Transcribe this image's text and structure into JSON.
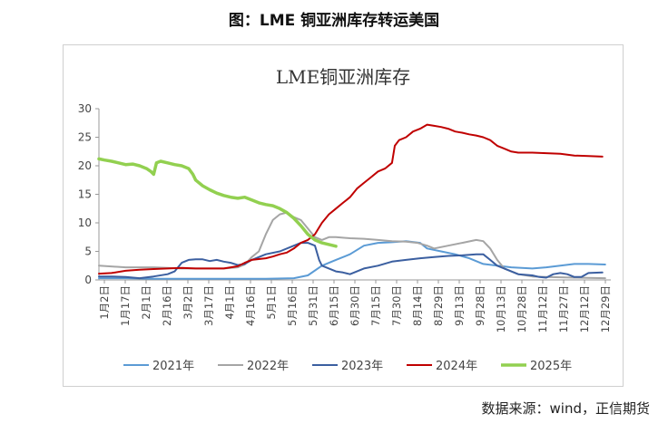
{
  "page_title": "图：LME 铜亚洲库存转运美国",
  "source_note": "数据来源：wind，正信期货",
  "chart_data": {
    "type": "line",
    "title": "LME铜亚洲库存",
    "xlabel": "",
    "ylabel": "",
    "ylim": [
      0,
      30
    ],
    "yticks": [
      0,
      5,
      10,
      15,
      20,
      25,
      30
    ],
    "x_tick_labels": [
      "1月2日",
      "1月17日",
      "2月1日",
      "2月16日",
      "3月2日",
      "3月17日",
      "4月1日",
      "4月16日",
      "5月1日",
      "5月16日",
      "5月31日",
      "6月15日",
      "6月30日",
      "7月15日",
      "7月30日",
      "8月14日",
      "8月29日",
      "9月13日",
      "9月28日",
      "10月13日",
      "10月28日",
      "11月12日",
      "11月27日",
      "12月12日",
      "12月29日"
    ],
    "grid": false,
    "legend_position": "bottom",
    "colors": {
      "2021": "#5b9bd5",
      "2022": "#a5a5a5",
      "2023": "#3b5fa0",
      "2024": "#c00000",
      "2025": "#92d050"
    },
    "series": [
      {
        "name": "2021年",
        "key": "2021",
        "points": [
          [
            1,
            0.3
          ],
          [
            20,
            0.3
          ],
          [
            40,
            0.2
          ],
          [
            60,
            0.2
          ],
          [
            80,
            0.2
          ],
          [
            100,
            0.2
          ],
          [
            120,
            0.2
          ],
          [
            140,
            0.3
          ],
          [
            150,
            0.8
          ],
          [
            160,
            2.5
          ],
          [
            170,
            3.5
          ],
          [
            180,
            4.5
          ],
          [
            190,
            6.0
          ],
          [
            200,
            6.5
          ],
          [
            210,
            6.6
          ],
          [
            220,
            6.8
          ],
          [
            230,
            6.5
          ],
          [
            235,
            5.5
          ],
          [
            245,
            5.0
          ],
          [
            255,
            4.5
          ],
          [
            265,
            3.8
          ],
          [
            275,
            2.8
          ],
          [
            285,
            2.5
          ],
          [
            295,
            2.2
          ],
          [
            310,
            2.0
          ],
          [
            320,
            2.2
          ],
          [
            330,
            2.5
          ],
          [
            340,
            2.8
          ],
          [
            350,
            2.8
          ],
          [
            362,
            2.7
          ]
        ]
      },
      {
        "name": "2022年",
        "key": "2022",
        "points": [
          [
            1,
            2.5
          ],
          [
            20,
            2.2
          ],
          [
            40,
            2.2
          ],
          [
            60,
            2.0
          ],
          [
            75,
            2.0
          ],
          [
            90,
            2.0
          ],
          [
            100,
            2.2
          ],
          [
            105,
            2.7
          ],
          [
            110,
            4.0
          ],
          [
            115,
            5.0
          ],
          [
            120,
            8.0
          ],
          [
            125,
            10.5
          ],
          [
            130,
            11.5
          ],
          [
            135,
            11.8
          ],
          [
            140,
            11.0
          ],
          [
            145,
            10.5
          ],
          [
            150,
            9.0
          ],
          [
            155,
            7.5
          ],
          [
            160,
            7.0
          ],
          [
            165,
            7.5
          ],
          [
            170,
            7.5
          ],
          [
            180,
            7.3
          ],
          [
            190,
            7.2
          ],
          [
            200,
            7.0
          ],
          [
            210,
            6.8
          ],
          [
            220,
            6.7
          ],
          [
            228,
            6.5
          ],
          [
            235,
            6.0
          ],
          [
            240,
            5.5
          ],
          [
            250,
            6.0
          ],
          [
            260,
            6.5
          ],
          [
            270,
            7.0
          ],
          [
            275,
            6.8
          ],
          [
            280,
            5.5
          ],
          [
            285,
            3.5
          ],
          [
            290,
            2.0
          ],
          [
            300,
            1.0
          ],
          [
            310,
            0.6
          ],
          [
            320,
            0.5
          ],
          [
            340,
            0.4
          ],
          [
            362,
            0.3
          ]
        ]
      },
      {
        "name": "2023年",
        "key": "2023",
        "points": [
          [
            1,
            0.6
          ],
          [
            10,
            0.6
          ],
          [
            20,
            0.5
          ],
          [
            30,
            0.3
          ],
          [
            40,
            0.6
          ],
          [
            50,
            1.0
          ],
          [
            55,
            1.5
          ],
          [
            60,
            3.0
          ],
          [
            65,
            3.5
          ],
          [
            70,
            3.6
          ],
          [
            75,
            3.6
          ],
          [
            80,
            3.3
          ],
          [
            85,
            3.5
          ],
          [
            90,
            3.2
          ],
          [
            95,
            3.0
          ],
          [
            100,
            2.6
          ],
          [
            105,
            2.8
          ],
          [
            110,
            3.5
          ],
          [
            120,
            4.5
          ],
          [
            130,
            5.0
          ],
          [
            140,
            6.0
          ],
          [
            145,
            6.5
          ],
          [
            150,
            6.5
          ],
          [
            155,
            6.0
          ],
          [
            158,
            3.5
          ],
          [
            160,
            2.5
          ],
          [
            165,
            2.0
          ],
          [
            170,
            1.5
          ],
          [
            175,
            1.3
          ],
          [
            180,
            1.0
          ],
          [
            185,
            1.5
          ],
          [
            190,
            2.0
          ],
          [
            200,
            2.5
          ],
          [
            210,
            3.2
          ],
          [
            220,
            3.5
          ],
          [
            230,
            3.8
          ],
          [
            240,
            4.0
          ],
          [
            250,
            4.2
          ],
          [
            260,
            4.3
          ],
          [
            270,
            4.5
          ],
          [
            275,
            4.5
          ],
          [
            280,
            3.5
          ],
          [
            285,
            2.5
          ],
          [
            290,
            2.0
          ],
          [
            295,
            1.5
          ],
          [
            300,
            1.0
          ],
          [
            310,
            0.8
          ],
          [
            315,
            0.5
          ],
          [
            320,
            0.4
          ],
          [
            325,
            1.0
          ],
          [
            330,
            1.2
          ],
          [
            335,
            1.0
          ],
          [
            340,
            0.5
          ],
          [
            345,
            0.5
          ],
          [
            350,
            1.2
          ],
          [
            360,
            1.3
          ]
        ]
      },
      {
        "name": "2024年",
        "key": "2024",
        "points": [
          [
            1,
            1.1
          ],
          [
            10,
            1.2
          ],
          [
            20,
            1.6
          ],
          [
            30,
            1.8
          ],
          [
            40,
            1.9
          ],
          [
            50,
            2.0
          ],
          [
            60,
            2.1
          ],
          [
            70,
            2.0
          ],
          [
            80,
            2.0
          ],
          [
            90,
            2.0
          ],
          [
            100,
            2.4
          ],
          [
            105,
            3.0
          ],
          [
            110,
            3.5
          ],
          [
            120,
            3.8
          ],
          [
            125,
            4.1
          ],
          [
            130,
            4.5
          ],
          [
            135,
            4.8
          ],
          [
            140,
            5.5
          ],
          [
            145,
            6.5
          ],
          [
            150,
            7.0
          ],
          [
            155,
            8.0
          ],
          [
            160,
            10.0
          ],
          [
            165,
            11.5
          ],
          [
            170,
            12.5
          ],
          [
            175,
            13.5
          ],
          [
            180,
            14.5
          ],
          [
            185,
            16.0
          ],
          [
            190,
            17.0
          ],
          [
            195,
            18.0
          ],
          [
            200,
            19.0
          ],
          [
            205,
            19.5
          ],
          [
            210,
            20.5
          ],
          [
            212,
            23.5
          ],
          [
            215,
            24.5
          ],
          [
            220,
            25.0
          ],
          [
            225,
            26.0
          ],
          [
            230,
            26.5
          ],
          [
            235,
            27.2
          ],
          [
            240,
            27.0
          ],
          [
            245,
            26.8
          ],
          [
            250,
            26.5
          ],
          [
            255,
            26.0
          ],
          [
            260,
            25.8
          ],
          [
            265,
            25.5
          ],
          [
            270,
            25.3
          ],
          [
            275,
            25.0
          ],
          [
            280,
            24.5
          ],
          [
            285,
            23.5
          ],
          [
            290,
            23.0
          ],
          [
            295,
            22.5
          ],
          [
            300,
            22.3
          ],
          [
            310,
            22.3
          ],
          [
            320,
            22.2
          ],
          [
            330,
            22.1
          ],
          [
            340,
            21.8
          ],
          [
            350,
            21.7
          ],
          [
            360,
            21.6
          ]
        ]
      },
      {
        "name": "2025年",
        "key": "2025",
        "points": [
          [
            1,
            21.2
          ],
          [
            5,
            21.0
          ],
          [
            10,
            20.8
          ],
          [
            15,
            20.5
          ],
          [
            20,
            20.2
          ],
          [
            25,
            20.3
          ],
          [
            30,
            20.0
          ],
          [
            35,
            19.5
          ],
          [
            38,
            19.0
          ],
          [
            40,
            18.5
          ],
          [
            42,
            20.5
          ],
          [
            45,
            20.8
          ],
          [
            50,
            20.5
          ],
          [
            55,
            20.2
          ],
          [
            60,
            20.0
          ],
          [
            65,
            19.5
          ],
          [
            68,
            18.5
          ],
          [
            70,
            17.5
          ],
          [
            75,
            16.5
          ],
          [
            80,
            15.8
          ],
          [
            85,
            15.2
          ],
          [
            90,
            14.8
          ],
          [
            95,
            14.5
          ],
          [
            100,
            14.3
          ],
          [
            105,
            14.5
          ],
          [
            110,
            14.0
          ],
          [
            115,
            13.5
          ],
          [
            120,
            13.2
          ],
          [
            125,
            13.0
          ],
          [
            130,
            12.5
          ],
          [
            135,
            11.8
          ],
          [
            140,
            10.8
          ],
          [
            145,
            9.5
          ],
          [
            150,
            8.0
          ],
          [
            155,
            7.0
          ],
          [
            160,
            6.5
          ],
          [
            165,
            6.2
          ],
          [
            170,
            5.9
          ]
        ]
      }
    ]
  }
}
